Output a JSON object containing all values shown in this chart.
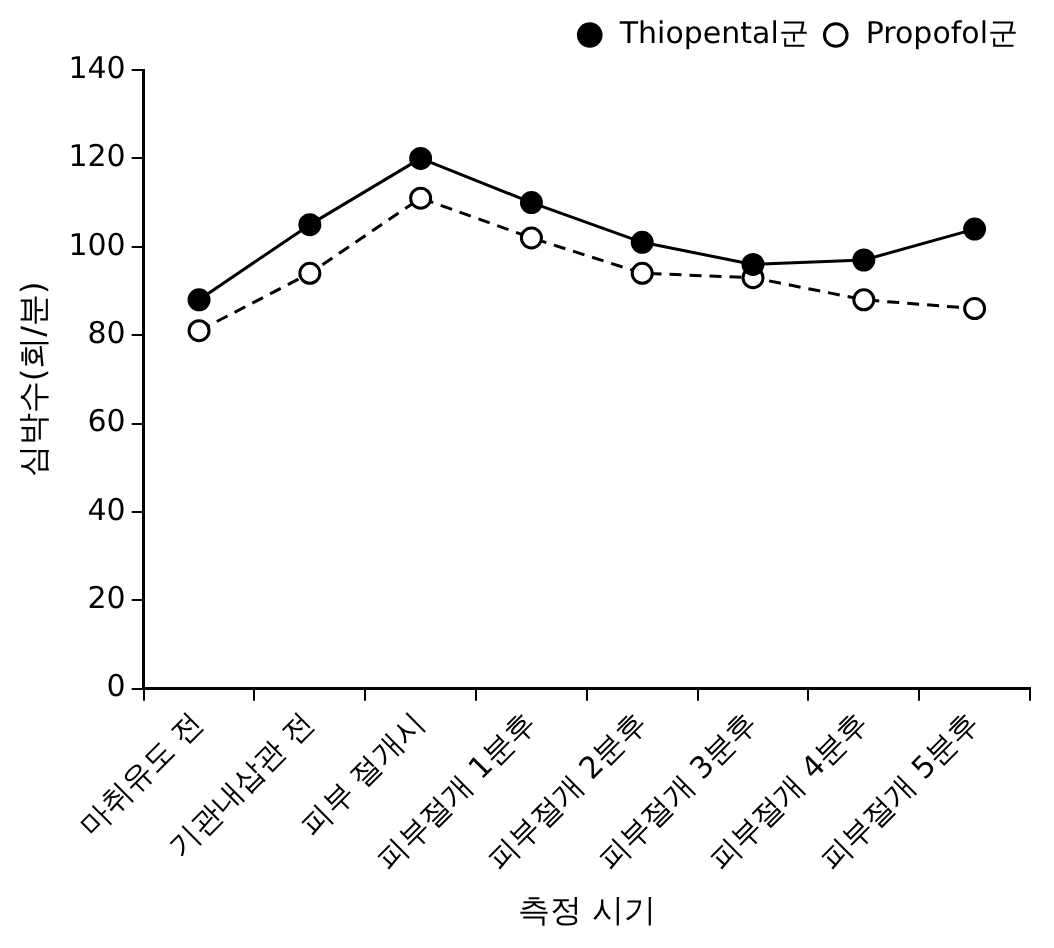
{
  "chart_data": {
    "type": "line",
    "xlabel": "측정 시기",
    "ylabel": "심박수(회/분)",
    "categories": [
      "마취유도 전",
      "기관내삽관 전",
      "피부 절개시",
      "피부절개 1분후",
      "피부절개 2분후",
      "피부절개 3분후",
      "피부절개 4분후",
      "피부절개 5분후"
    ],
    "series": [
      {
        "name": "Thiopental군",
        "color": "#000000",
        "line_style": "solid",
        "values": [
          88,
          105,
          120,
          110,
          101,
          96,
          97,
          104
        ]
      },
      {
        "name": "Propofol군",
        "color": "#000000",
        "line_style": "dashed",
        "values": [
          81,
          94,
          111,
          102,
          94,
          93,
          88,
          86
        ]
      }
    ],
    "ylim": [
      0,
      140
    ],
    "yticks": [
      0,
      20,
      40,
      60,
      80,
      100,
      120,
      140
    ],
    "grid": false,
    "legend": "top right",
    "marker": "circle"
  }
}
